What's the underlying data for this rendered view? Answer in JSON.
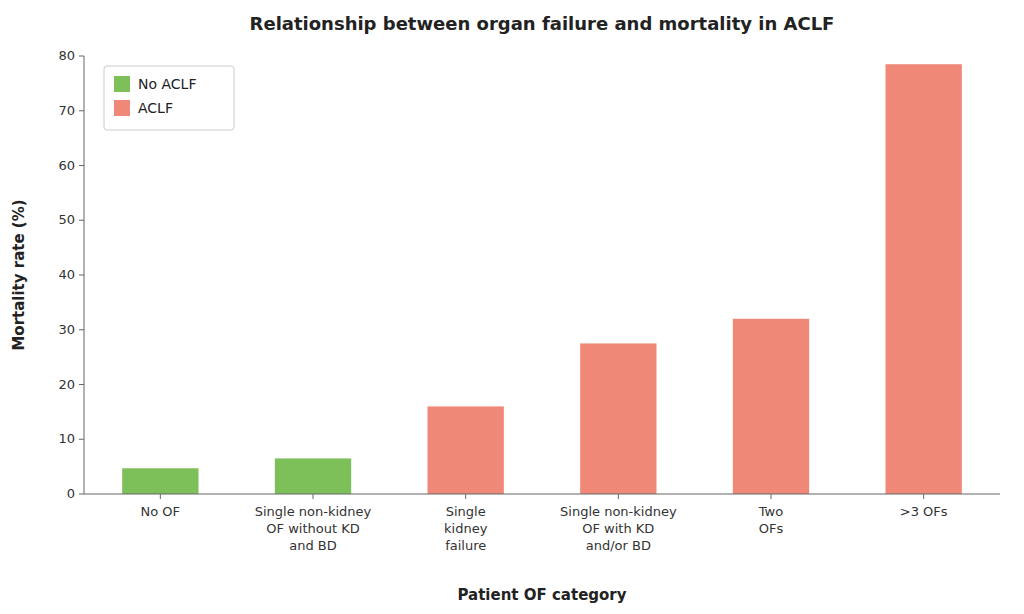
{
  "chart_data": {
    "type": "bar",
    "title": "Relationship between organ failure and mortality in ACLF",
    "xlabel": "Patient OF category",
    "ylabel": "Mortality rate (%)",
    "categories": [
      "No OF",
      "Single non-kidney\nOF without KD\nand BD",
      "Single\nkidney\nfailure",
      "Single non-kidney\nOF with KD\nand/or BD",
      "Two\nOFs",
      ">3 OFs"
    ],
    "series": [
      {
        "name": "No ACLF",
        "color": "#7dc05a",
        "values": [
          4.7,
          6.5,
          null,
          null,
          null,
          null
        ]
      },
      {
        "name": "ACLF",
        "color": "#f08878",
        "values": [
          null,
          null,
          16.0,
          27.5,
          32.0,
          78.5
        ]
      }
    ],
    "stacked": true,
    "ylim": [
      0,
      80
    ],
    "yticks": [
      0,
      10,
      20,
      30,
      40,
      50,
      60,
      70,
      80
    ],
    "grid": false,
    "legend": "upper left"
  }
}
